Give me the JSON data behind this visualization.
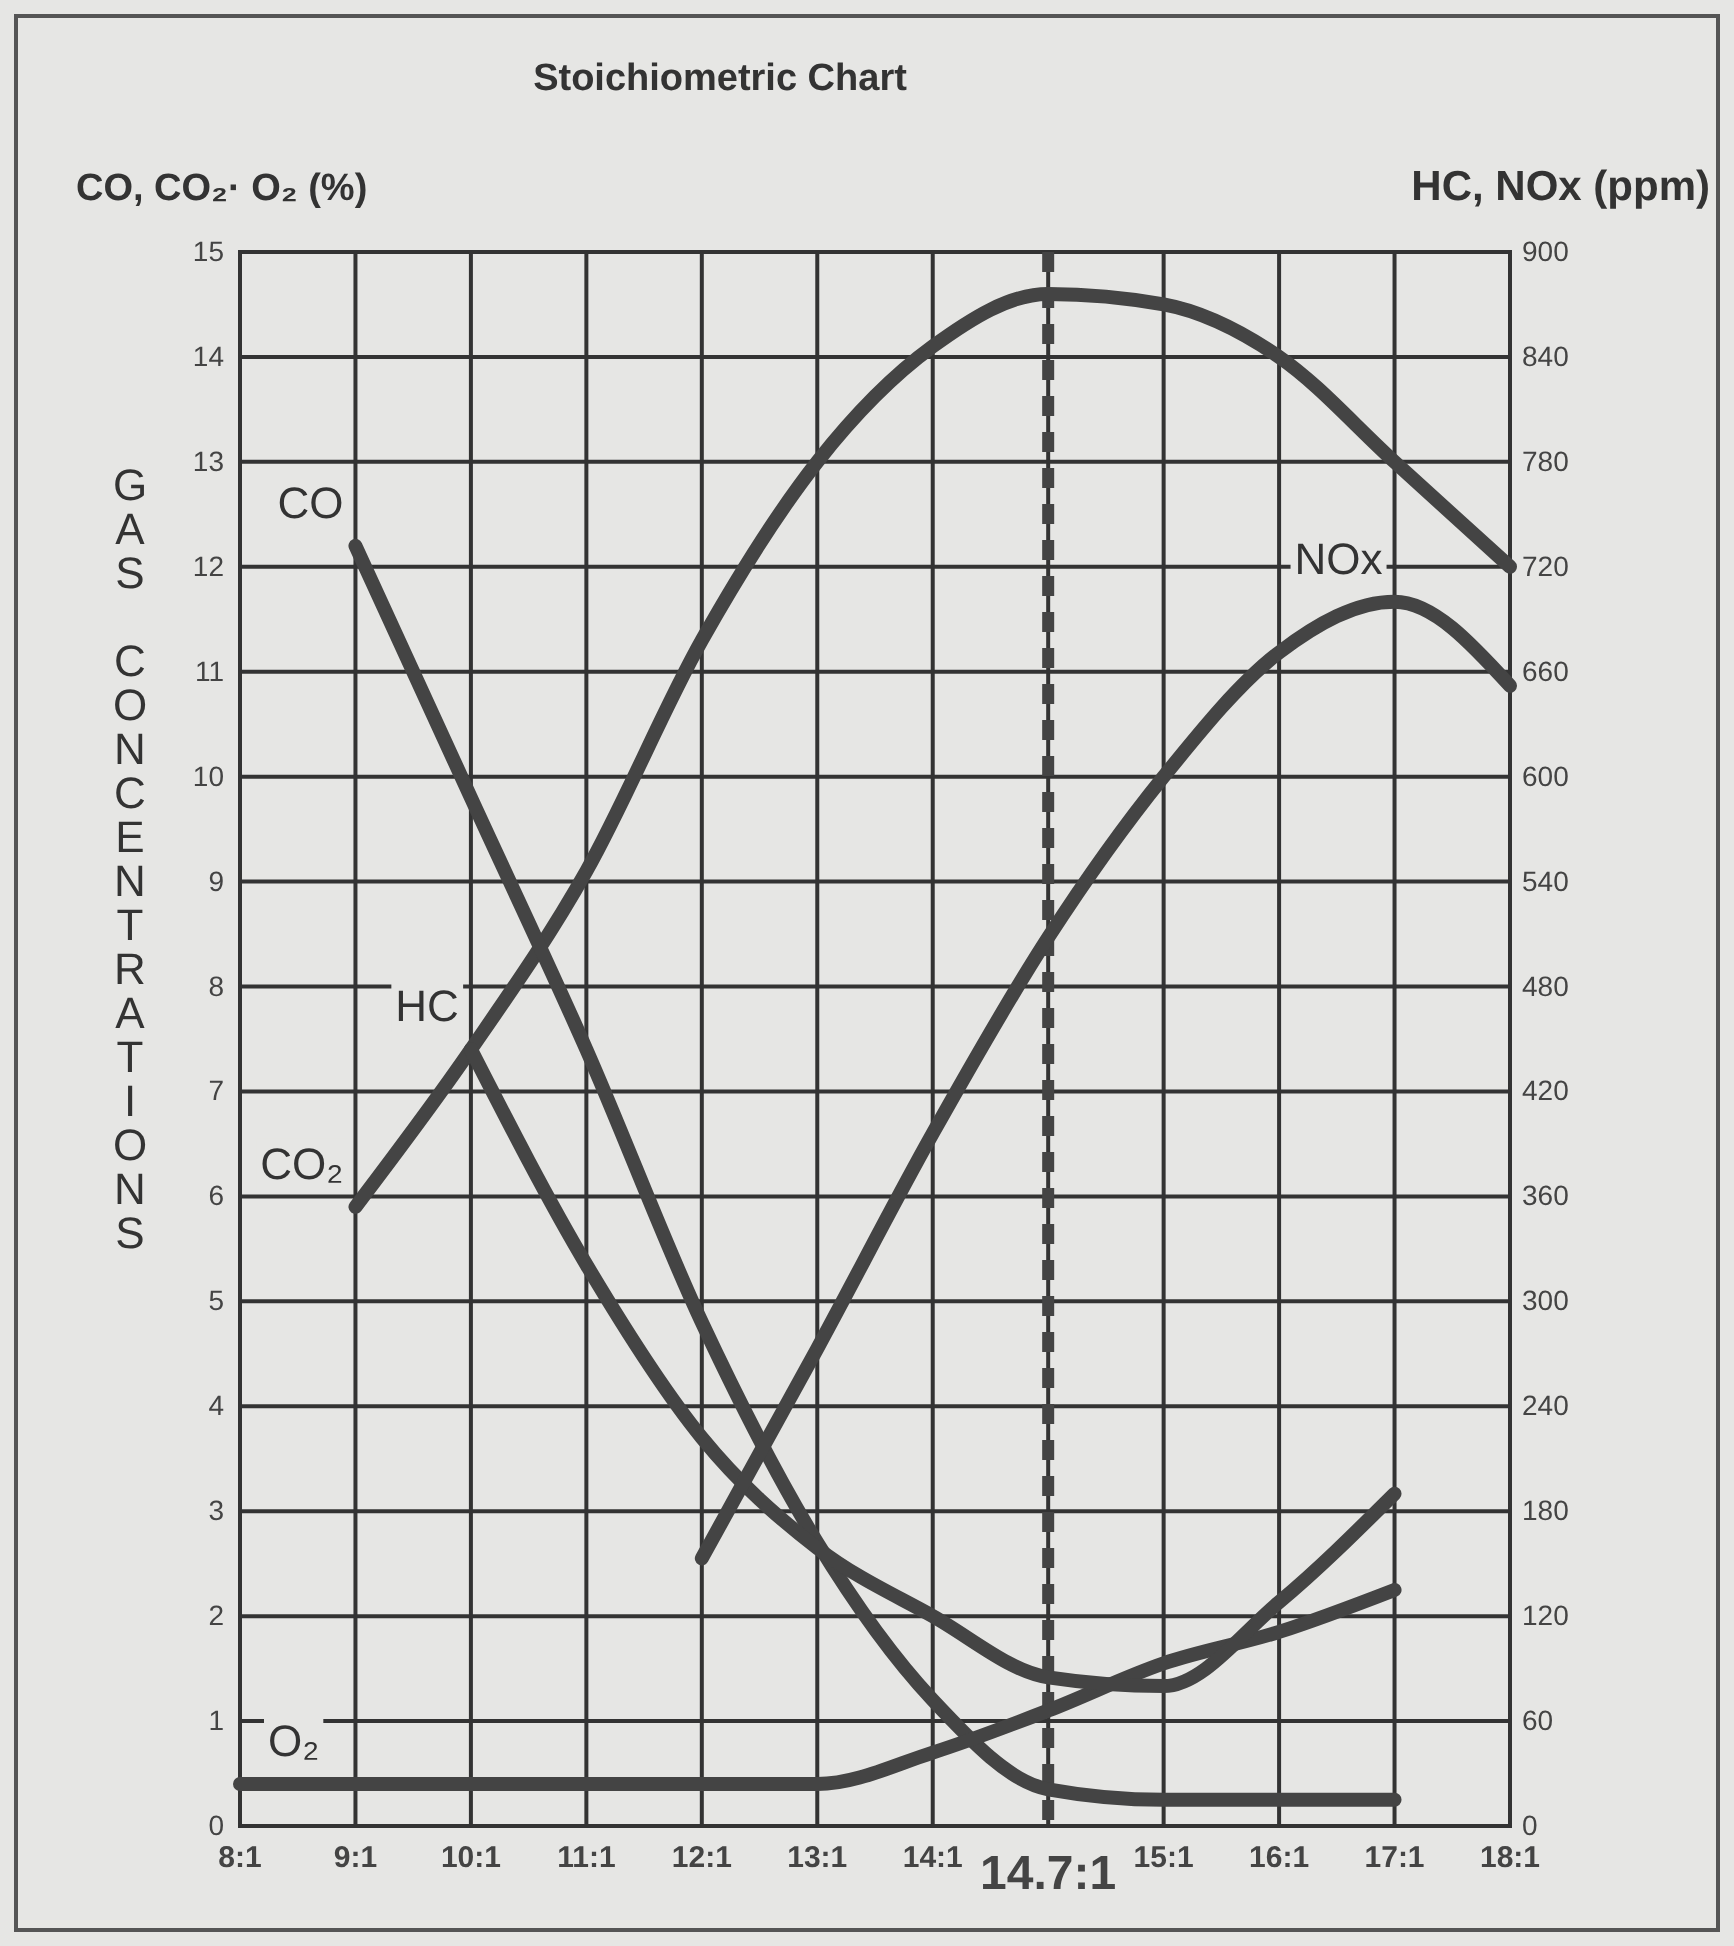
{
  "chart_data": {
    "type": "line",
    "title": "Stoichiometric Chart",
    "ylabel": "GAS CONCENTRATIONS",
    "y2label": "HC, NOx (ppm)",
    "annotations": [
      "CO, CO₂· O₂ (%)"
    ],
    "categories": [
      "8:1",
      "9:1",
      "10:1",
      "11:1",
      "12:1",
      "13:1",
      "14:1",
      "14.7:1",
      "15:1",
      "16:1",
      "17:1",
      "18:1"
    ],
    "series": [
      {
        "name": "CO₂",
        "color": "#444444",
        "values": [
          null,
          5.9,
          7.4,
          9.1,
          11.3,
          13.0,
          14.1,
          14.6,
          14.5,
          14.0,
          13.0,
          12.0
        ]
      },
      {
        "name": "CO",
        "color": "#444444",
        "values": [
          null,
          12.2,
          9.8,
          7.4,
          4.8,
          2.7,
          1.2,
          0.35,
          0.25,
          0.25,
          0.25,
          null
        ]
      },
      {
        "name": "O₂",
        "color": "#444444",
        "values": [
          0.4,
          0.4,
          0.4,
          0.4,
          0.4,
          0.4,
          0.7,
          1.1,
          1.55,
          1.85,
          2.25,
          null
        ]
      },
      {
        "name": "HC",
        "color": "#444444",
        "axis": "y2",
        "values": [
          null,
          null,
          444,
          321,
          222,
          159,
          120,
          85,
          80,
          128,
          190,
          null
        ]
      },
      {
        "name": "NOx",
        "color": "#444444",
        "axis": "y2",
        "values": [
          null,
          null,
          null,
          null,
          153,
          273,
          396,
          508,
          600,
          671,
          700,
          652
        ]
      }
    ],
    "ylim": [
      0,
      15
    ],
    "yticks": [
      0,
      1,
      2,
      3,
      4,
      5,
      6,
      7,
      8,
      9,
      10,
      11,
      12,
      13,
      14,
      15
    ],
    "y2lim": [
      0,
      900
    ],
    "y2ticks": [
      0,
      60,
      120,
      180,
      240,
      300,
      360,
      420,
      480,
      540,
      600,
      660,
      720,
      780,
      840,
      900
    ],
    "ref_lines": [
      {
        "axis": "x",
        "value": "14.7:1",
        "line_style": "dashed",
        "color": "#444444"
      }
    ],
    "grid": true,
    "legend": false,
    "marker": "none",
    "line_style": "solid"
  }
}
